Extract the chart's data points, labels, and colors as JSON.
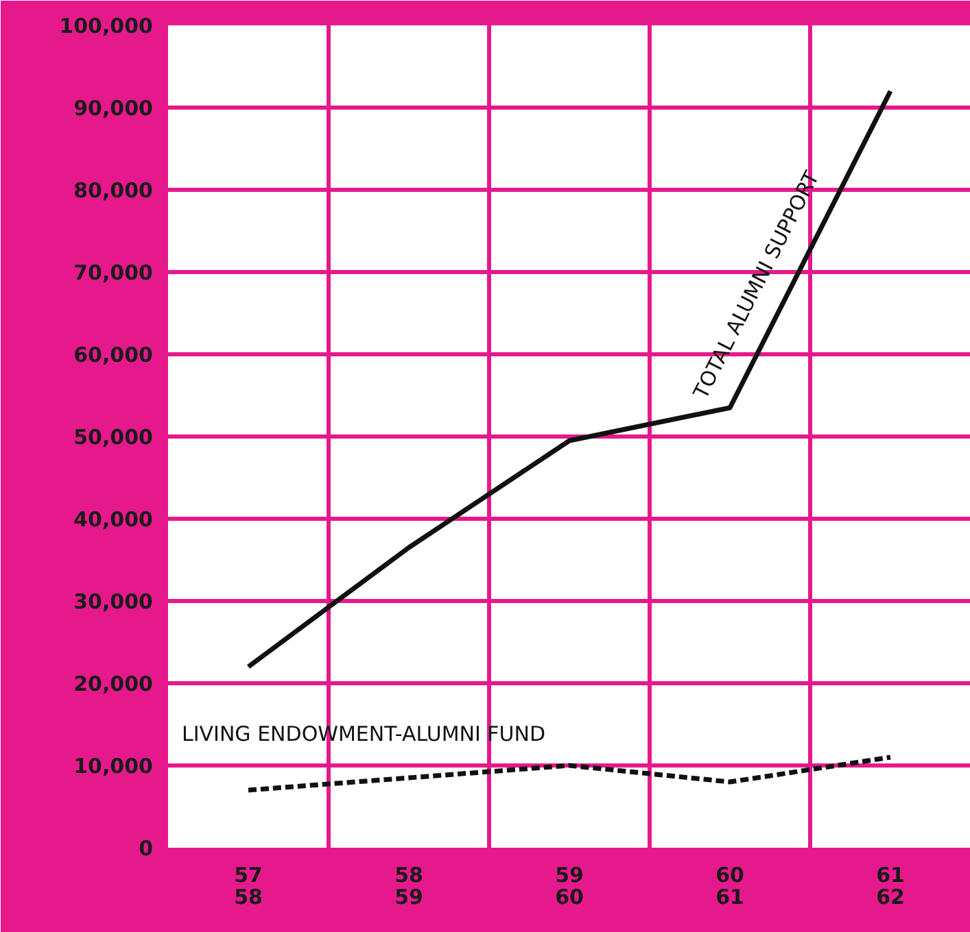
{
  "chart_data": {
    "type": "line",
    "categories": [
      "57\n58",
      "58\n59",
      "59\n60",
      "60\n61",
      "61\n62"
    ],
    "ylim": [
      0,
      100000
    ],
    "yticks": [
      {
        "value": 0,
        "label": "0"
      },
      {
        "value": 10000,
        "label": "10,000"
      },
      {
        "value": 20000,
        "label": "20,000"
      },
      {
        "value": 30000,
        "label": "30,000"
      },
      {
        "value": 40000,
        "label": "40,000"
      },
      {
        "value": 50000,
        "label": "50,000"
      },
      {
        "value": 60000,
        "label": "60,000"
      },
      {
        "value": 70000,
        "label": "70,000"
      },
      {
        "value": 80000,
        "label": "80,000"
      },
      {
        "value": 90000,
        "label": "90,000"
      },
      {
        "value": 100000,
        "label": "100,000"
      }
    ],
    "grid": true,
    "marker": "none",
    "series": [
      {
        "name": "TOTAL ALUMNI SUPPORT",
        "color": "#111111",
        "line_style": "solid",
        "values": [
          22000,
          36500,
          49500,
          53500,
          92000
        ]
      },
      {
        "name": "LIVING ENDOWMENT-ALUMNI FUND",
        "color": "#111111",
        "line_style": "dashed",
        "values": [
          7000,
          8500,
          10000,
          8000,
          11000
        ]
      }
    ]
  }
}
